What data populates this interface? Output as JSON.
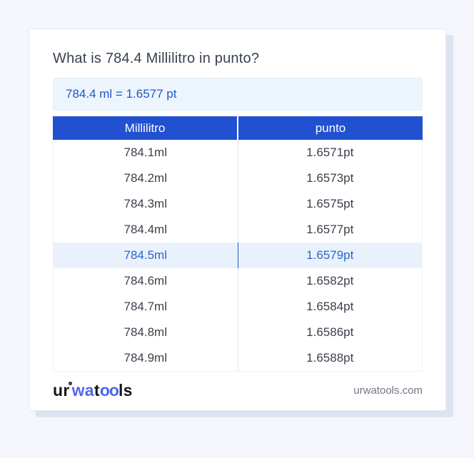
{
  "page": {
    "title": "What is 784.4 Millilitro in punto?",
    "result": "784.4 ml = 1.6577 pt"
  },
  "table": {
    "headers": [
      "Millilitro",
      "punto"
    ],
    "highlighted_index": 4,
    "rows": [
      {
        "ml": "784.1ml",
        "pt": "1.6571pt"
      },
      {
        "ml": "784.2ml",
        "pt": "1.6573pt"
      },
      {
        "ml": "784.3ml",
        "pt": "1.6575pt"
      },
      {
        "ml": "784.4ml",
        "pt": "1.6577pt"
      },
      {
        "ml": "784.5ml",
        "pt": "1.6579pt"
      },
      {
        "ml": "784.6ml",
        "pt": "1.6582pt"
      },
      {
        "ml": "784.7ml",
        "pt": "1.6584pt"
      },
      {
        "ml": "784.8ml",
        "pt": "1.6586pt"
      },
      {
        "ml": "784.9ml",
        "pt": "1.6588pt"
      }
    ]
  },
  "footer": {
    "logo": {
      "full_text": "urwatools",
      "seg1": "ur",
      "seg2": "wa",
      "seg3": "t",
      "seg4": "oo",
      "seg5": "ls"
    },
    "domain": "urwatools.com"
  },
  "colors": {
    "page_background": "#f4f6fb",
    "table_header_blue": "#2151d0",
    "result_text_blue": "#2057c5",
    "highlight_row_background": "#e9f2fc",
    "highlight_row_text": "#2a65c8",
    "logo_blue": "#5663ef"
  }
}
